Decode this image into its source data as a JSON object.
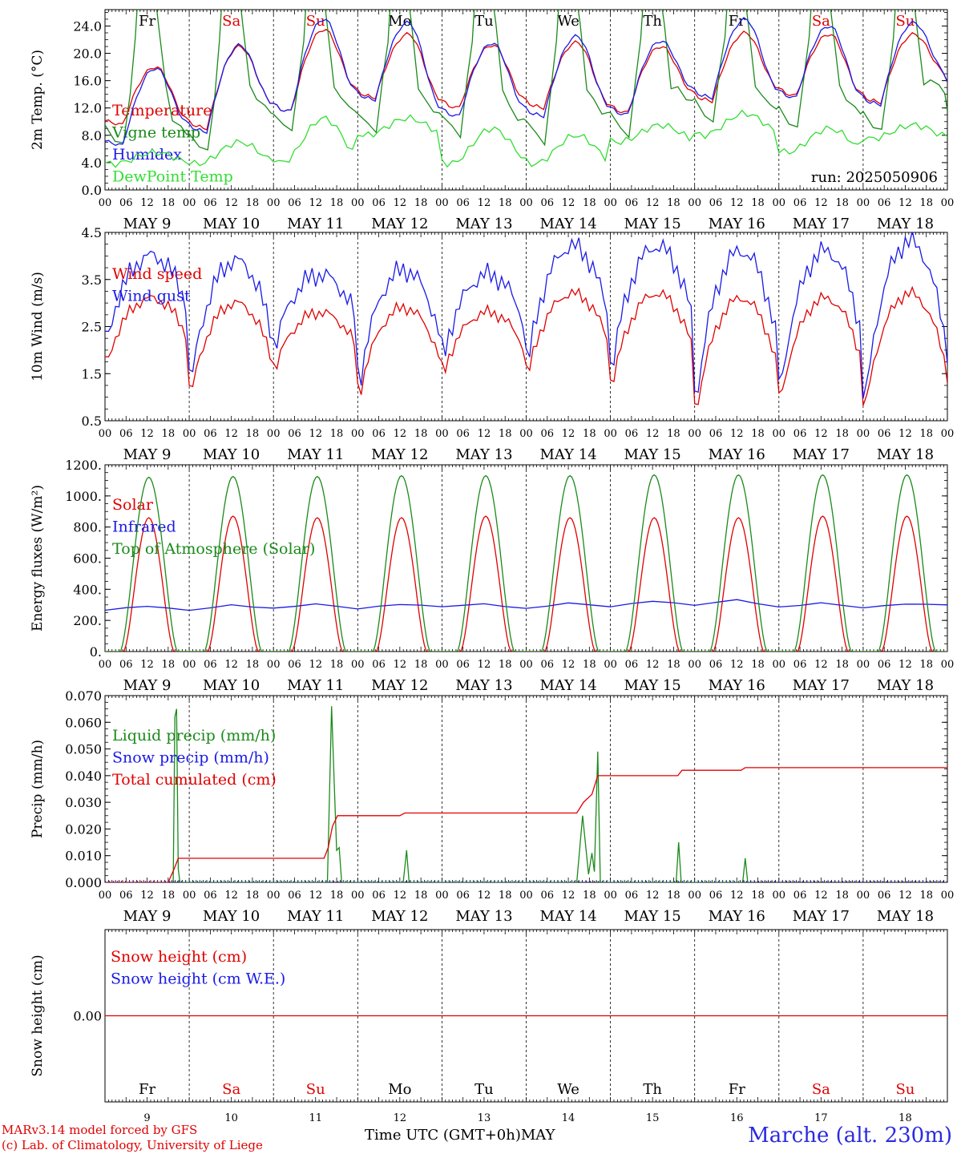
{
  "footer": {
    "credit_line1": "MARv3.14 model forced by GFS",
    "credit_line2": "(c) Lab. of Climatology, University of Liege",
    "xaxis_title": "Time UTC (GMT+0h)MAY",
    "station": "Marche (alt. 230m)"
  },
  "colors": {
    "red": "#e00000",
    "blue": "#1a1ae6",
    "green": "#1a8a1a",
    "lightgreen": "#33dd33",
    "weekend": "#e00000"
  },
  "chart_data": [
    {
      "type": "line",
      "ylabel": "2m Temp. (°C)",
      "ylim": [
        0,
        26.4
      ],
      "yticks": [
        "0.0",
        "4.0",
        "8.0",
        "12.0",
        "16.0",
        "20.0",
        "24.0"
      ],
      "yticks_values": [
        0,
        4,
        8,
        12,
        16,
        20,
        24
      ],
      "annotation": "run: 2025050906",
      "day_letters": [
        "Fr",
        "Sa",
        "Su",
        "Mo",
        "Tu",
        "We",
        "Th",
        "Fr",
        "Sa",
        "Su"
      ],
      "day_letters_weekend": [
        false,
        true,
        true,
        false,
        false,
        false,
        false,
        false,
        true,
        true
      ],
      "date_labels": [
        "MAY  9",
        "MAY 10",
        "MAY 11",
        "MAY 12",
        "MAY 13",
        "MAY 14",
        "MAY 15",
        "MAY 16",
        "MAY 17",
        "MAY 18"
      ],
      "series": [
        {
          "name": "Temperature",
          "color": "red",
          "min": [
            9.5,
            9,
            11.5,
            13.5,
            12,
            12,
            11.3,
            13,
            13.8,
            12.8
          ],
          "max": [
            18,
            21,
            23.5,
            22.8,
            21.2,
            21.6,
            21,
            23,
            22.8,
            22.8
          ],
          "end": 15.8
        },
        {
          "name": "Vigne temp",
          "color": "green",
          "min": [
            6.5,
            5.5,
            8.5,
            8.5,
            8,
            7,
            8,
            10,
            9,
            8.5
          ],
          "max": [
            30,
            30,
            30,
            30,
            30,
            30,
            30,
            30,
            30,
            30
          ],
          "end": 11.5
        },
        {
          "name": "Humidex",
          "color": "blue",
          "min": [
            6.5,
            8.5,
            11.5,
            13.2,
            10.8,
            10.8,
            11,
            13.5,
            13.5,
            12.5
          ],
          "max": [
            17.8,
            21.2,
            25,
            24.5,
            21.5,
            22.5,
            21.8,
            25,
            24,
            24.5
          ],
          "end": 15.8
        },
        {
          "name": "DewPoint Temp",
          "color": "lightgreen",
          "min": [
            3.8,
            3.8,
            4,
            8,
            3.8,
            3.8,
            7,
            8,
            5.5,
            7.5
          ],
          "max": [
            5.5,
            7,
            10.5,
            10.5,
            9,
            8,
            9.5,
            11.2,
            9,
            9.5
          ],
          "end": 7.8
        }
      ]
    },
    {
      "type": "line",
      "ylabel": "10m Wind (m/s)",
      "ylim": [
        0.5,
        4.5
      ],
      "yticks": [
        "0.5",
        "1.5",
        "2.5",
        "3.5",
        "4.5"
      ],
      "yticks_values": [
        0.5,
        1.5,
        2.5,
        3.5,
        4.5
      ],
      "date_labels": [
        "MAY  9",
        "MAY 10",
        "MAY 11",
        "MAY 12",
        "MAY 13",
        "MAY 14",
        "MAY 15",
        "MAY 16",
        "MAY 17",
        "MAY 18"
      ],
      "series": [
        {
          "name": "Wind speed",
          "color": "red",
          "min": [
            1.8,
            1.2,
            1.7,
            1.2,
            1.6,
            1.6,
            1.4,
            0.9,
            1.1,
            0.9
          ],
          "max": [
            3.1,
            3.0,
            2.8,
            2.9,
            2.8,
            3.2,
            3.2,
            3.1,
            3.1,
            3.2
          ],
          "end": 1.3
        },
        {
          "name": "Wind gust",
          "color": "blue",
          "min": [
            2.3,
            1.5,
            2.2,
            1.5,
            2.0,
            1.9,
            1.8,
            1.2,
            1.4,
            1.1
          ],
          "max": [
            4.0,
            3.9,
            3.6,
            3.7,
            3.6,
            4.2,
            4.2,
            4.1,
            4.1,
            4.3
          ],
          "end": 1.7
        }
      ]
    },
    {
      "type": "line",
      "ylabel": "Energy fluxes (W/m²)",
      "ylim": [
        0,
        1200
      ],
      "yticks": [
        "0.",
        "200.",
        "400.",
        "600.",
        "800.",
        "1000.",
        "1200."
      ],
      "yticks_values": [
        0,
        200,
        400,
        600,
        800,
        1000,
        1200
      ],
      "date_labels": [
        "MAY  9",
        "MAY 10",
        "MAY 11",
        "MAY 12",
        "MAY 13",
        "MAY 14",
        "MAY 15",
        "MAY 16",
        "MAY 17",
        "MAY 18"
      ],
      "series": [
        {
          "name": "Solar",
          "color": "red",
          "peaks": [
            860,
            870,
            860,
            860,
            870,
            860,
            860,
            860,
            870,
            870
          ]
        },
        {
          "name": "Infrared",
          "color": "blue",
          "values": [
            265,
            290,
            265,
            300,
            280,
            305,
            275,
            300,
            290,
            305,
            280,
            310,
            290,
            320,
            300,
            330,
            290,
            310,
            285,
            300
          ]
        },
        {
          "name": "Top of Atmosphere (Solar)",
          "color": "green",
          "peaks": [
            1120,
            1125,
            1125,
            1130,
            1130,
            1130,
            1135,
            1135,
            1135,
            1135
          ]
        }
      ]
    },
    {
      "type": "line",
      "ylabel": "Precip (mm/h)",
      "ylim": [
        0,
        0.07
      ],
      "yticks": [
        "0.000",
        "0.010",
        "0.020",
        "0.030",
        "0.040",
        "0.050",
        "0.060",
        "0.070"
      ],
      "yticks_values": [
        0,
        0.01,
        0.02,
        0.03,
        0.04,
        0.05,
        0.06,
        0.07
      ],
      "date_labels": [
        "MAY  9",
        "MAY 10",
        "MAY 11",
        "MAY 12",
        "MAY 13",
        "MAY 14",
        "MAY 15",
        "MAY 16",
        "MAY 17",
        "MAY 18"
      ],
      "series": [
        {
          "name": "Liquid precip (mm/h)",
          "color": "green",
          "points": [
            [
              0.81,
              0
            ],
            [
              0.83,
              0.062
            ],
            [
              0.85,
              0.065
            ],
            [
              0.87,
              0.005
            ],
            [
              0.89,
              0
            ],
            [
              2.64,
              0
            ],
            [
              2.69,
              0.066
            ],
            [
              2.72,
              0.038
            ],
            [
              2.75,
              0.012
            ],
            [
              2.78,
              0.013
            ],
            [
              2.81,
              0
            ],
            [
              3.54,
              0
            ],
            [
              3.58,
              0.012
            ],
            [
              3.61,
              0
            ],
            [
              5.6,
              0
            ],
            [
              5.67,
              0.025
            ],
            [
              5.74,
              0.003
            ],
            [
              5.78,
              0.011
            ],
            [
              5.81,
              0.004
            ],
            [
              5.85,
              0.049
            ],
            [
              5.88,
              0
            ],
            [
              6.78,
              0
            ],
            [
              6.81,
              0.015
            ],
            [
              6.84,
              0
            ],
            [
              7.57,
              0
            ],
            [
              7.6,
              0.009
            ],
            [
              7.63,
              0
            ]
          ]
        },
        {
          "name": "Snow precip (mm/h)",
          "color": "blue",
          "points": []
        },
        {
          "name": "Total cumulated (cm)",
          "color": "red",
          "points": [
            [
              0,
              0
            ],
            [
              0.75,
              0
            ],
            [
              0.82,
              0.005
            ],
            [
              0.87,
              0.009
            ],
            [
              2.6,
              0.009
            ],
            [
              2.65,
              0.013
            ],
            [
              2.7,
              0.021
            ],
            [
              2.76,
              0.025
            ],
            [
              3.5,
              0.025
            ],
            [
              3.56,
              0.026
            ],
            [
              5.6,
              0.026
            ],
            [
              5.68,
              0.03
            ],
            [
              5.78,
              0.033
            ],
            [
              5.85,
              0.04
            ],
            [
              6.8,
              0.04
            ],
            [
              6.85,
              0.042
            ],
            [
              7.55,
              0.042
            ],
            [
              7.6,
              0.043
            ],
            [
              10,
              0.043
            ]
          ]
        }
      ]
    },
    {
      "type": "line",
      "ylabel": "Snow height (cm)",
      "ylim": [
        -1,
        1
      ],
      "yticks": [
        "0.00"
      ],
      "yticks_values": [
        0
      ],
      "day_letters": [
        "Fr",
        "Sa",
        "Su",
        "Mo",
        "Tu",
        "We",
        "Th",
        "Fr",
        "Sa",
        "Su"
      ],
      "day_letters_weekend": [
        false,
        true,
        true,
        false,
        false,
        false,
        false,
        false,
        true,
        true
      ],
      "day_numbers": [
        "9",
        "10",
        "11",
        "12",
        "13",
        "14",
        "15",
        "16",
        "17",
        "18"
      ],
      "series": [
        {
          "name": "Snow height (cm)",
          "color": "red",
          "values": [
            0,
            0
          ]
        },
        {
          "name": "Snow height (cm W.E.)",
          "color": "blue",
          "values": []
        }
      ]
    }
  ]
}
